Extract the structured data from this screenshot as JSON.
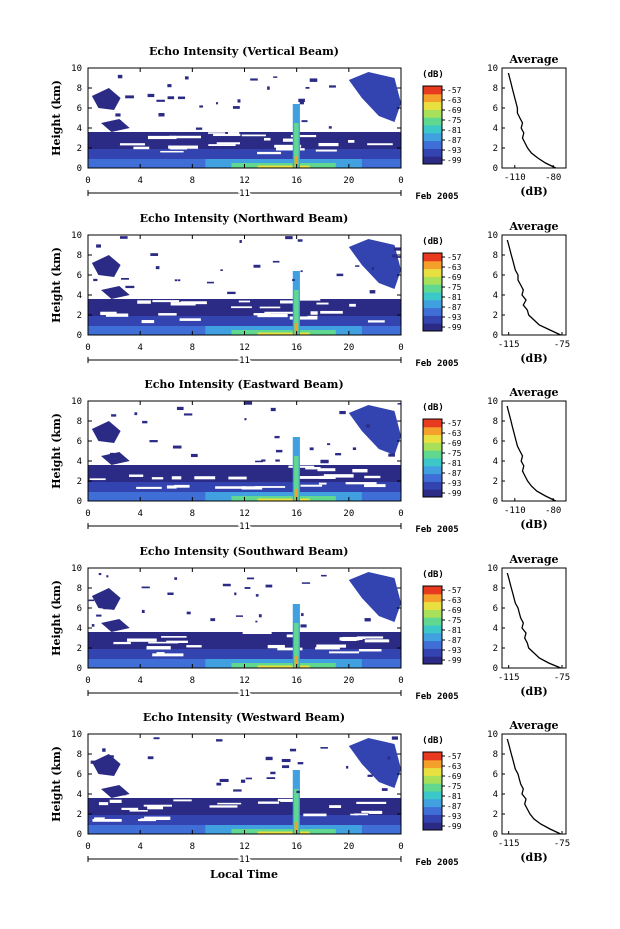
{
  "xlabel": "Local Time",
  "date_label": "Feb 2005",
  "day_label": "11",
  "colorbar_unit": "(dB)",
  "colorbar_ticks": [
    "-57",
    "-63",
    "-69",
    "-75",
    "-81",
    "-87",
    "-93",
    "-99"
  ],
  "colors": {
    "colormap": [
      "#2b2b86",
      "#3344b0",
      "#3f6fd6",
      "#40a0e0",
      "#3cc8c8",
      "#60d890",
      "#a8e05a",
      "#e8e040",
      "#f4a02a",
      "#e83a1e"
    ]
  },
  "chart_data": [
    {
      "type": "heatmap",
      "title": "Echo Intensity (Vertical Beam)",
      "ylabel": "Height (km)",
      "x_ticks": [
        "0",
        "4",
        "8",
        "12",
        "16",
        "20",
        "0"
      ],
      "y_ticks": [
        "0",
        "2",
        "4",
        "6",
        "8",
        "10"
      ],
      "xlim": [
        0,
        24
      ],
      "ylim": [
        0,
        10
      ],
      "avg": {
        "title": "Average",
        "xlabel": "(dB)",
        "x_ticks": [
          "-110",
          "-80"
        ],
        "xlim": [
          -120,
          -70
        ],
        "y_ticks": [
          "0",
          "2",
          "4",
          "6",
          "8",
          "10"
        ],
        "profile_height_km": [
          0,
          0.5,
          1,
          1.5,
          2,
          2.5,
          3,
          3.5,
          4,
          4.5,
          5,
          5.5,
          6,
          6.5,
          7,
          7.5,
          8,
          8.5,
          9,
          9.5
        ],
        "profile_db": [
          -78,
          -86,
          -92,
          -97,
          -100,
          -102,
          -104,
          -103,
          -105,
          -104,
          -106,
          -108,
          -108,
          -109,
          -110,
          -111,
          -112,
          -113,
          -114,
          -115
        ]
      }
    },
    {
      "type": "heatmap",
      "title": "Echo Intensity (Northward Beam)",
      "ylabel": "Height (km)",
      "x_ticks": [
        "0",
        "4",
        "8",
        "12",
        "16",
        "20",
        "0"
      ],
      "y_ticks": [
        "0",
        "2",
        "4",
        "6",
        "8",
        "10"
      ],
      "xlim": [
        0,
        24
      ],
      "ylim": [
        0,
        10
      ],
      "avg": {
        "title": "Average",
        "xlabel": "(dB)",
        "x_ticks": [
          "-115",
          "-75"
        ],
        "xlim": [
          -120,
          -72
        ],
        "y_ticks": [
          "0",
          "2",
          "4",
          "6",
          "8",
          "10"
        ],
        "profile_height_km": [
          0,
          0.5,
          1,
          1.5,
          2,
          2.5,
          3,
          3.5,
          4,
          4.5,
          5,
          5.5,
          6,
          6.5,
          7,
          7.5,
          8,
          8.5,
          9,
          9.5
        ],
        "profile_db": [
          -76,
          -84,
          -92,
          -96,
          -100,
          -101,
          -104,
          -102,
          -105,
          -104,
          -106,
          -108,
          -108,
          -110,
          -111,
          -112,
          -113,
          -114,
          -115,
          -116
        ]
      }
    },
    {
      "type": "heatmap",
      "title": "Echo Intensity (Eastward Beam)",
      "ylabel": "Height (km)",
      "x_ticks": [
        "0",
        "4",
        "8",
        "12",
        "16",
        "20",
        "0"
      ],
      "y_ticks": [
        "0",
        "2",
        "4",
        "6",
        "8",
        "10"
      ],
      "xlim": [
        0,
        24
      ],
      "ylim": [
        0,
        10
      ],
      "avg": {
        "title": "Average",
        "xlabel": "(dB)",
        "x_ticks": [
          "-110",
          "-80"
        ],
        "xlim": [
          -120,
          -70
        ],
        "y_ticks": [
          "0",
          "2",
          "4",
          "6",
          "8",
          "10"
        ],
        "profile_height_km": [
          0,
          0.5,
          1,
          1.5,
          2,
          2.5,
          3,
          3.5,
          4,
          4.5,
          5,
          5.5,
          6,
          6.5,
          7,
          7.5,
          8,
          8.5,
          9,
          9.5
        ],
        "profile_db": [
          -78,
          -86,
          -93,
          -97,
          -100,
          -102,
          -104,
          -103,
          -105,
          -104,
          -106,
          -108,
          -109,
          -110,
          -111,
          -112,
          -113,
          -114,
          -115,
          -116
        ]
      }
    },
    {
      "type": "heatmap",
      "title": "Echo Intensity (Southward Beam)",
      "ylabel": "Height (km)",
      "x_ticks": [
        "0",
        "4",
        "8",
        "12",
        "16",
        "20",
        "0"
      ],
      "y_ticks": [
        "0",
        "2",
        "4",
        "6",
        "8",
        "10"
      ],
      "xlim": [
        0,
        24
      ],
      "ylim": [
        0,
        10
      ],
      "avg": {
        "title": "Average",
        "xlabel": "(dB)",
        "x_ticks": [
          "-115",
          "-75"
        ],
        "xlim": [
          -120,
          -72
        ],
        "y_ticks": [
          "0",
          "2",
          "4",
          "6",
          "8",
          "10"
        ],
        "profile_height_km": [
          0,
          0.5,
          1,
          1.5,
          2,
          2.5,
          3,
          3.5,
          4,
          4.5,
          5,
          5.5,
          6,
          6.5,
          7,
          7.5,
          8,
          8.5,
          9,
          9.5
        ],
        "profile_db": [
          -76,
          -85,
          -92,
          -96,
          -100,
          -101,
          -103,
          -102,
          -105,
          -104,
          -106,
          -107,
          -108,
          -110,
          -111,
          -112,
          -113,
          -114,
          -115,
          -116
        ]
      }
    },
    {
      "type": "heatmap",
      "title": "Echo Intensity (Westward Beam)",
      "ylabel": "Height (km)",
      "x_ticks": [
        "0",
        "4",
        "8",
        "12",
        "16",
        "20",
        "0"
      ],
      "y_ticks": [
        "0",
        "2",
        "4",
        "6",
        "8",
        "10"
      ],
      "xlim": [
        0,
        24
      ],
      "ylim": [
        0,
        10
      ],
      "avg": {
        "title": "Average",
        "xlabel": "(dB)",
        "x_ticks": [
          "-115",
          "-75"
        ],
        "xlim": [
          -120,
          -72
        ],
        "y_ticks": [
          "0",
          "2",
          "4",
          "6",
          "8",
          "10"
        ],
        "profile_height_km": [
          0,
          0.5,
          1,
          1.5,
          2,
          2.5,
          3,
          3.5,
          4,
          4.5,
          5,
          5.5,
          6,
          6.5,
          7,
          7.5,
          8,
          8.5,
          9,
          9.5
        ],
        "profile_db": [
          -76,
          -84,
          -91,
          -96,
          -99,
          -101,
          -103,
          -102,
          -105,
          -104,
          -106,
          -107,
          -108,
          -110,
          -111,
          -112,
          -113,
          -114,
          -115,
          -116
        ]
      }
    }
  ]
}
